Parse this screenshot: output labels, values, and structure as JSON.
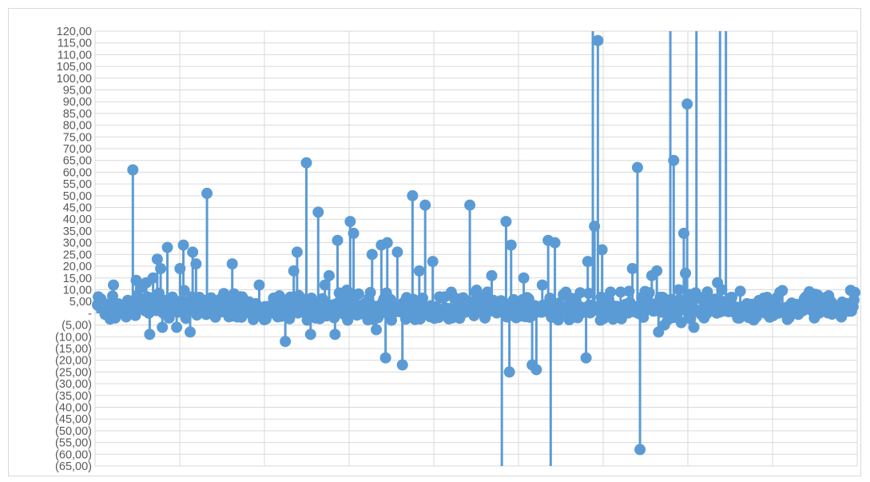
{
  "chart_data": {
    "type": "scatter",
    "subtype": "drop-line lollipop",
    "title": "",
    "xlabel": "",
    "ylabel": "",
    "ylim": [
      -65,
      120
    ],
    "y_tick_labels": [
      "120,00",
      "115,00",
      "110,00",
      "105,00",
      "100,00",
      "95,00",
      "90,00",
      "85,00",
      "80,00",
      "75,00",
      "70,00",
      "65,00",
      "60,00",
      "55,00",
      "50,00",
      "45,00",
      "40,00",
      "35,00",
      "30,00",
      "25,00",
      "20,00",
      "15,00",
      "10,00",
      "5,00",
      "-",
      "(5,00)",
      "(10,00)",
      "(15,00)",
      "(20,00)",
      "(25,00)",
      "(30,00)",
      "(35,00)",
      "(40,00)",
      "(45,00)",
      "(50,00)",
      "(55,00)",
      "(60,00)",
      "(65,00)"
    ],
    "grid": true,
    "legend": "none",
    "series_color": "#5b9bd5",
    "n_points": 900,
    "notable_points": [
      {
        "x": 19,
        "y": 12
      },
      {
        "x": 42,
        "y": 61
      },
      {
        "x": 46,
        "y": 14
      },
      {
        "x": 52,
        "y": 11
      },
      {
        "x": 58,
        "y": 13
      },
      {
        "x": 62,
        "y": -9
      },
      {
        "x": 66,
        "y": 15
      },
      {
        "x": 71,
        "y": 23
      },
      {
        "x": 75,
        "y": 19
      },
      {
        "x": 77,
        "y": -6
      },
      {
        "x": 83,
        "y": 28
      },
      {
        "x": 94,
        "y": -6
      },
      {
        "x": 98,
        "y": 19
      },
      {
        "x": 102,
        "y": 29
      },
      {
        "x": 110,
        "y": -8
      },
      {
        "x": 113,
        "y": 26
      },
      {
        "x": 117,
        "y": 21
      },
      {
        "x": 130,
        "y": 51
      },
      {
        "x": 160,
        "y": 21
      },
      {
        "x": 192,
        "y": 12
      },
      {
        "x": 223,
        "y": -12
      },
      {
        "x": 233,
        "y": 18
      },
      {
        "x": 237,
        "y": 26
      },
      {
        "x": 248,
        "y": 64
      },
      {
        "x": 253,
        "y": -9
      },
      {
        "x": 262,
        "y": 43
      },
      {
        "x": 270,
        "y": 12
      },
      {
        "x": 275,
        "y": 16
      },
      {
        "x": 282,
        "y": -9
      },
      {
        "x": 285,
        "y": 31
      },
      {
        "x": 300,
        "y": 39
      },
      {
        "x": 304,
        "y": 34
      },
      {
        "x": 326,
        "y": 25
      },
      {
        "x": 331,
        "y": -7
      },
      {
        "x": 337,
        "y": 29
      },
      {
        "x": 342,
        "y": -19
      },
      {
        "x": 344,
        "y": 30
      },
      {
        "x": 356,
        "y": 26
      },
      {
        "x": 362,
        "y": -22
      },
      {
        "x": 374,
        "y": 50
      },
      {
        "x": 382,
        "y": 18
      },
      {
        "x": 389,
        "y": 46
      },
      {
        "x": 398,
        "y": 22
      },
      {
        "x": 442,
        "y": 46
      },
      {
        "x": 468,
        "y": 16
      },
      {
        "x": 480,
        "y": -65
      },
      {
        "x": 485,
        "y": 39
      },
      {
        "x": 489,
        "y": -25
      },
      {
        "x": 491,
        "y": 29
      },
      {
        "x": 506,
        "y": 15
      },
      {
        "x": 516,
        "y": -22
      },
      {
        "x": 521,
        "y": -24
      },
      {
        "x": 528,
        "y": 12
      },
      {
        "x": 535,
        "y": 31
      },
      {
        "x": 538,
        "y": -65
      },
      {
        "x": 543,
        "y": 30
      },
      {
        "x": 580,
        "y": -19
      },
      {
        "x": 582,
        "y": 22
      },
      {
        "x": 588,
        "y": 120
      },
      {
        "x": 590,
        "y": 37
      },
      {
        "x": 594,
        "y": 116
      },
      {
        "x": 599,
        "y": 27
      },
      {
        "x": 609,
        "y": 9
      },
      {
        "x": 621,
        "y": 9
      },
      {
        "x": 635,
        "y": 19
      },
      {
        "x": 641,
        "y": 62
      },
      {
        "x": 644,
        "y": -58
      },
      {
        "x": 658,
        "y": 16
      },
      {
        "x": 664,
        "y": 18
      },
      {
        "x": 666,
        "y": -8
      },
      {
        "x": 673,
        "y": -5
      },
      {
        "x": 680,
        "y": 120
      },
      {
        "x": 684,
        "y": 65
      },
      {
        "x": 690,
        "y": 10
      },
      {
        "x": 693,
        "y": -4
      },
      {
        "x": 696,
        "y": 34
      },
      {
        "x": 698,
        "y": 17
      },
      {
        "x": 700,
        "y": 89
      },
      {
        "x": 703,
        "y": 8
      },
      {
        "x": 708,
        "y": -6
      },
      {
        "x": 711,
        "y": 120
      },
      {
        "x": 720,
        "y": -2
      },
      {
        "x": 728,
        "y": 5
      },
      {
        "x": 736,
        "y": 13
      },
      {
        "x": 739,
        "y": 120
      },
      {
        "x": 741,
        "y": 10
      },
      {
        "x": 746,
        "y": 120
      },
      {
        "x": 747,
        "y": 2
      }
    ]
  }
}
